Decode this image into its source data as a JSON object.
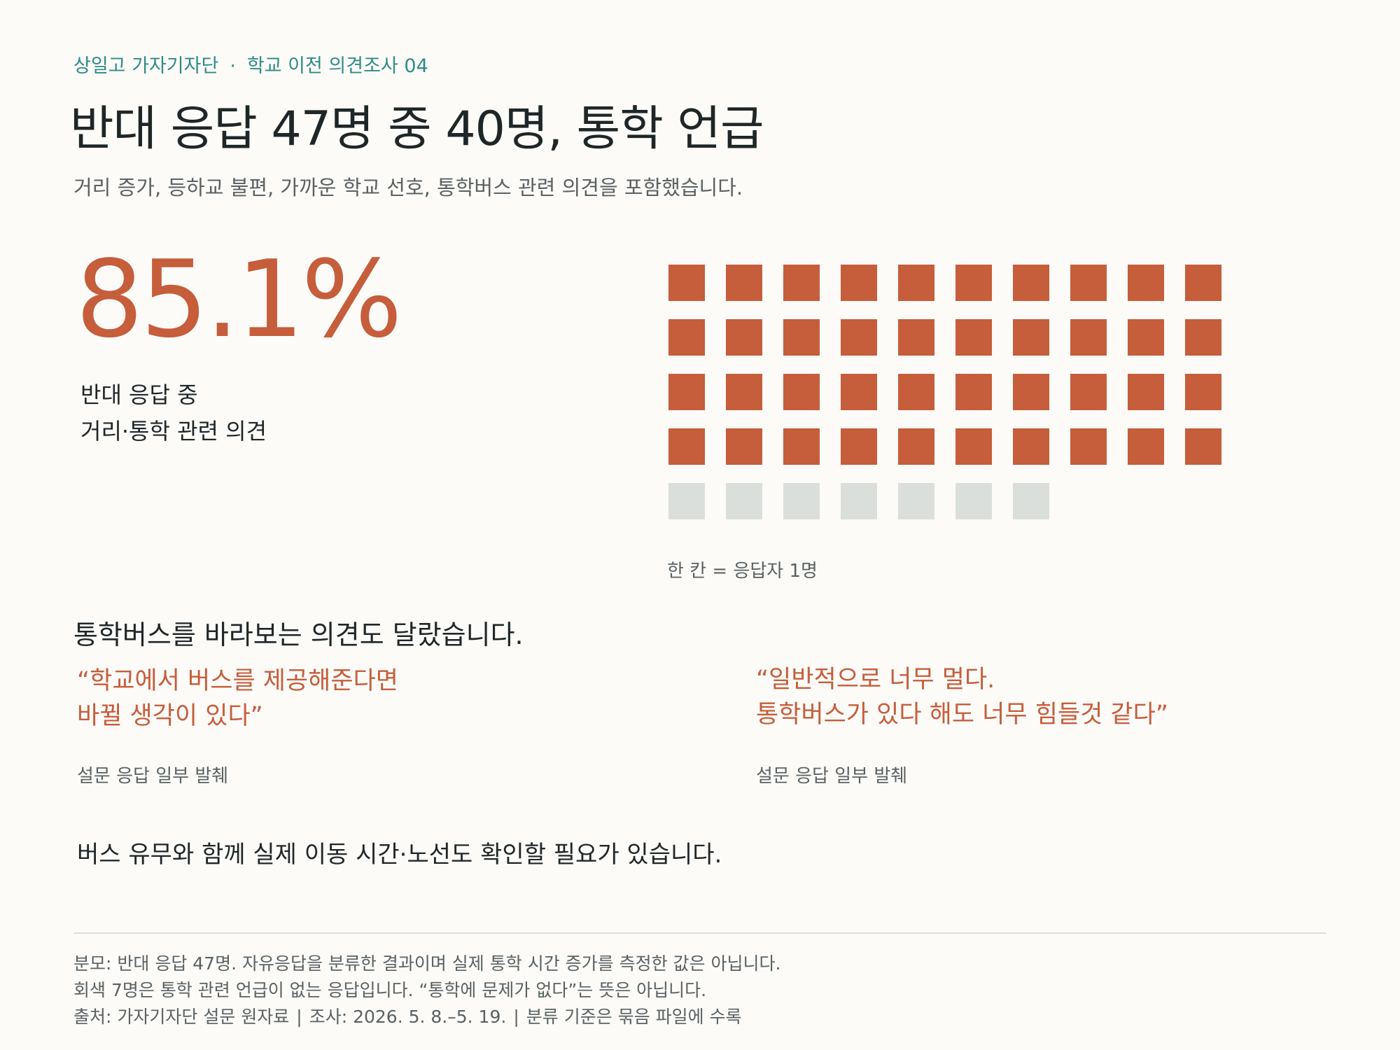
{
  "header": {
    "kicker_org": "상일고 가자기자단",
    "kicker_sep": "·",
    "kicker_series": "학교 이전 의견조사  04",
    "title": "반대 응답 47명 중 40명, 통학 언급",
    "subtitle": "거리 증가, 등하교 불편, 가까운 학교 선호, 통학버스 관련 의견을 포함했습니다."
  },
  "highlight": {
    "value": "85.1%",
    "label_line1": "반대 응답 중",
    "label_line2": "거리·통학 관련 의견"
  },
  "chart_data": {
    "type": "waffle",
    "total": 47,
    "columns": 10,
    "categories": [
      "거리·통학 관련 의견",
      "통학 관련 언급 없음"
    ],
    "values": [
      40,
      7
    ],
    "colors": {
      "mentioned": "#c65d3b",
      "not_mentioned": "#dbdfdc"
    },
    "unit_note": "한 칸 = 응답자 1명"
  },
  "bus_section": {
    "heading": "통학버스를 바라보는 의견도 달랐습니다.",
    "quotes": [
      {
        "line1": "“학교에서 버스를 제공해준다면",
        "line2": "바뀔 생각이 있다”",
        "source": "설문 응답 일부 발췌"
      },
      {
        "line1": "“일반적으로 너무 멀다.",
        "line2": "통학버스가 있다 해도 너무 힘들것 같다”",
        "source": "설문 응답 일부 발췌"
      }
    ],
    "conclusion": "버스 유무와 함께 실제 이동 시간·노선도 확인할 필요가 있습니다."
  },
  "footer": {
    "line1": "분모: 반대 응답 47명. 자유응답을 분류한 결과이며 실제 통학 시간 증가를 측정한 값은 아닙니다.",
    "line2": "회색 7명은 통학 관련 언급이 없는 응답입니다. “통학에 문제가 없다”는 뜻은 아닙니다.",
    "source": "출처: 가자기자단 설문 원자료",
    "period": "조사: 2026. 5. 8.–5. 19.",
    "note": "분류 기준은 묶음 파일에 수록",
    "sep": "|"
  }
}
